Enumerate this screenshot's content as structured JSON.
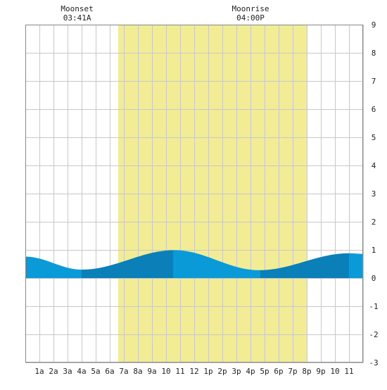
{
  "chart_data": {
    "type": "area",
    "title": "",
    "xlabel": "",
    "ylabel": "",
    "xlim": [
      0,
      24
    ],
    "ylim": [
      -3,
      9
    ],
    "grid": true,
    "x_ticks": [
      "1a",
      "2a",
      "3a",
      "4a",
      "5a",
      "6a",
      "7a",
      "8a",
      "9a",
      "10",
      "11",
      "12",
      "1p",
      "2p",
      "3p",
      "4p",
      "5p",
      "6p",
      "7p",
      "8p",
      "9p",
      "10",
      "11"
    ],
    "y_ticks": [
      -3,
      -2,
      -1,
      0,
      1,
      2,
      3,
      4,
      5,
      6,
      7,
      8,
      9
    ],
    "daylight": {
      "start_hour": 6.6,
      "end_hour": 20.0,
      "color": "#f2ec94"
    },
    "annotations": [
      {
        "label": "Moonset",
        "time": "03:41A",
        "hour": 3.68
      },
      {
        "label": "Moonrise",
        "time": "04:00P",
        "hour": 16.0
      }
    ],
    "tide_extrema": [
      {
        "hour": 0.0,
        "height": 0.76
      },
      {
        "hour": 4.0,
        "height": 0.3
      },
      {
        "hour": 10.6,
        "height": 0.99
      },
      {
        "hour": 16.6,
        "height": 0.28
      },
      {
        "hour": 23.0,
        "height": 0.88
      },
      {
        "hour": 24.0,
        "height": 0.86
      }
    ],
    "shade_bands": [
      {
        "from": 0,
        "to": 4,
        "shade": "light"
      },
      {
        "from": 4,
        "to": 10.5,
        "shade": "dark"
      },
      {
        "from": 10.5,
        "to": 16.7,
        "shade": "light"
      },
      {
        "from": 16.7,
        "to": 23.0,
        "shade": "dark"
      },
      {
        "from": 23.0,
        "to": 24,
        "shade": "light"
      }
    ],
    "colors": {
      "tide_light": "#0a9ad8",
      "tide_dark": "#0b7fb8",
      "grid": "#c8c8c8",
      "frame": "#888888"
    }
  }
}
